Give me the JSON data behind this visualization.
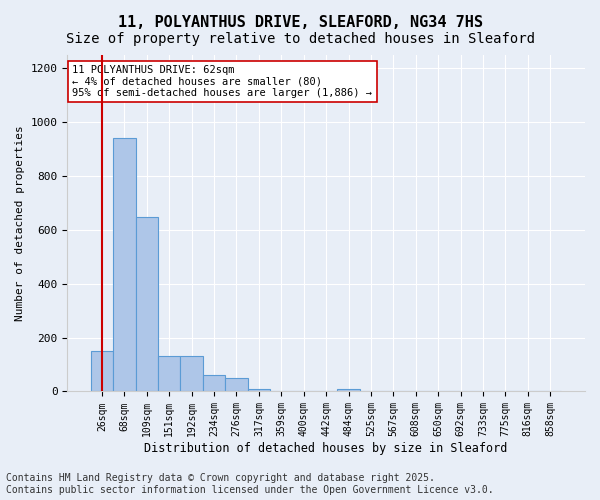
{
  "title": "11, POLYANTHUS DRIVE, SLEAFORD, NG34 7HS",
  "subtitle": "Size of property relative to detached houses in Sleaford",
  "xlabel": "Distribution of detached houses by size in Sleaford",
  "ylabel": "Number of detached properties",
  "categories": [
    "26sqm",
    "68sqm",
    "109sqm",
    "151sqm",
    "192sqm",
    "234sqm",
    "276sqm",
    "317sqm",
    "359sqm",
    "400sqm",
    "442sqm",
    "484sqm",
    "525sqm",
    "567sqm",
    "608sqm",
    "650sqm",
    "692sqm",
    "733sqm",
    "775sqm",
    "816sqm",
    "858sqm"
  ],
  "values": [
    150,
    940,
    650,
    130,
    130,
    60,
    50,
    10,
    0,
    0,
    0,
    10,
    0,
    0,
    0,
    0,
    0,
    0,
    0,
    0,
    0
  ],
  "bar_color": "#aec6e8",
  "bar_edge_color": "#5b9bd5",
  "vline_color": "#cc0000",
  "annotation_text": "11 POLYANTHUS DRIVE: 62sqm\n← 4% of detached houses are smaller (80)\n95% of semi-detached houses are larger (1,886) →",
  "annotation_box_color": "#ffffff",
  "annotation_box_edge_color": "#cc0000",
  "ylim": [
    0,
    1250
  ],
  "yticks": [
    0,
    200,
    400,
    600,
    800,
    1000,
    1200
  ],
  "bg_color": "#e8eef7",
  "plot_bg_color": "#e8eef7",
  "footer_line1": "Contains HM Land Registry data © Crown copyright and database right 2025.",
  "footer_line2": "Contains public sector information licensed under the Open Government Licence v3.0.",
  "title_fontsize": 11,
  "subtitle_fontsize": 10,
  "annotation_fontsize": 7.5,
  "footer_fontsize": 7
}
